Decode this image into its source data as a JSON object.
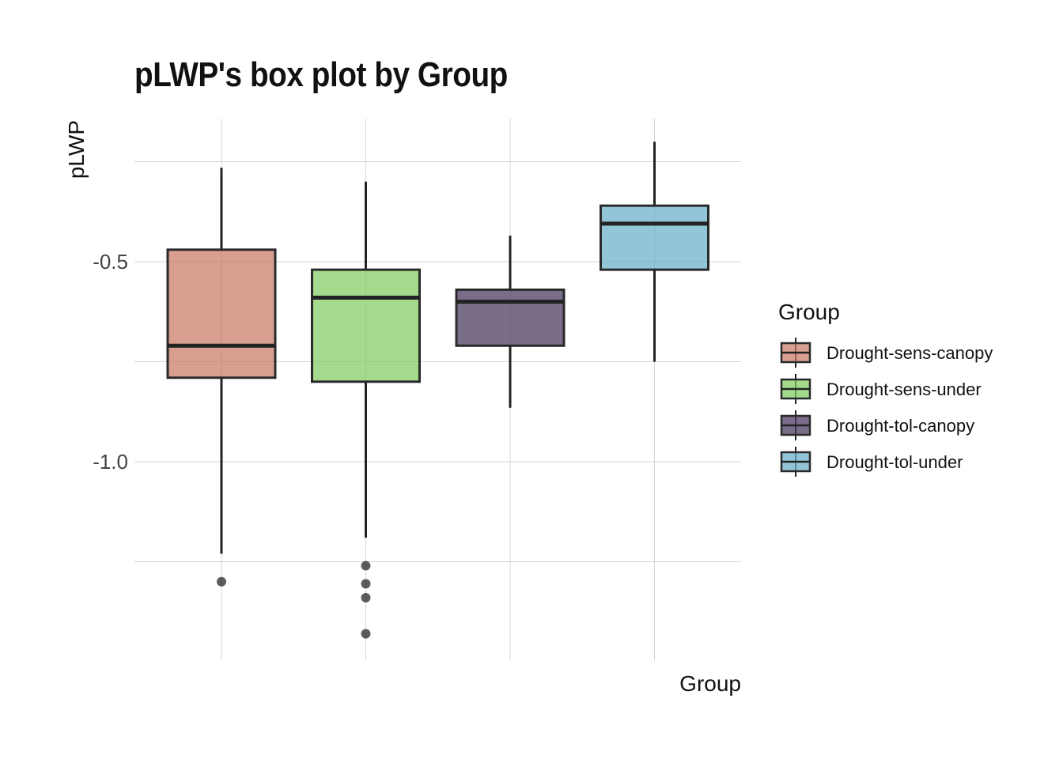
{
  "chart_data": {
    "type": "box",
    "title": "pLWP's box plot by Group",
    "xlabel": "Group",
    "ylabel": "pLWP",
    "ylim": [
      -1.5,
      -0.25
    ],
    "y_ticks": [
      {
        "value": -0.5,
        "label": "-0.5"
      },
      {
        "value": -1.0,
        "label": "-1.0"
      }
    ],
    "y_minor_gridlines": [
      -0.25,
      -0.75,
      -1.25
    ],
    "grid": true,
    "legend": {
      "title": "Group",
      "position": "right"
    },
    "categories": [
      "Drought-sens-canopy",
      "Drought-sens-under",
      "Drought-tol-canopy",
      "Drought-tol-under"
    ],
    "series": [
      {
        "name": "Drought-sens-canopy",
        "color": "#c97965",
        "whisker_low": -1.23,
        "q1": -0.79,
        "median": -0.71,
        "q3": -0.47,
        "whisker_high": -0.265,
        "outliers": [
          -1.3
        ]
      },
      {
        "name": "Drought-sens-under",
        "color": "#7fcc5e",
        "whisker_low": -1.19,
        "q1": -0.8,
        "median": -0.59,
        "q3": -0.52,
        "whisker_high": -0.3,
        "outliers": [
          -1.26,
          -1.305,
          -1.34,
          -1.43
        ]
      },
      {
        "name": "Drought-tol-canopy",
        "color": "#46355c",
        "whisker_low": -0.865,
        "q1": -0.71,
        "median": -0.6,
        "q3": -0.57,
        "whisker_high": -0.435,
        "outliers": []
      },
      {
        "name": "Drought-tol-under",
        "color": "#6aafcb",
        "whisker_low": -0.75,
        "q1": -0.52,
        "median": -0.405,
        "q3": -0.36,
        "whisker_high": -0.2,
        "outliers": []
      }
    ]
  }
}
